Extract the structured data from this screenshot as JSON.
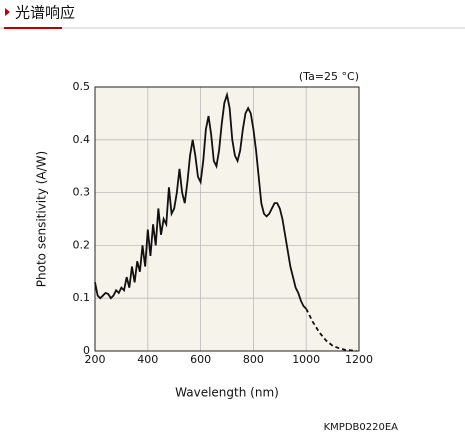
{
  "header": {
    "title": "光谱响应"
  },
  "chart_data": {
    "type": "line",
    "note": "(Ta=25 °C)",
    "xlabel": "Wavelength (nm)",
    "ylabel": "Photo sensitivity (A/W)",
    "footer": "KMPDB0220EA",
    "xlim": [
      200,
      1200
    ],
    "ylim": [
      0,
      0.5
    ],
    "xticks": [
      200,
      400,
      600,
      800,
      1000,
      1200
    ],
    "yticks": [
      0,
      0.1,
      0.2,
      0.3,
      0.4,
      0.5
    ],
    "grid": true,
    "series": [
      {
        "color": "#111111",
        "style": "solid",
        "x": [
          200,
          210,
          220,
          230,
          240,
          250,
          260,
          270,
          280,
          290,
          300,
          310,
          320,
          330,
          340,
          350,
          360,
          370,
          380,
          390,
          400,
          410,
          420,
          430,
          440,
          450,
          460,
          470,
          480,
          490,
          500,
          510,
          520,
          530,
          540,
          550,
          560,
          570,
          580,
          590,
          600,
          610,
          620,
          630,
          640,
          650,
          660,
          670,
          680,
          690,
          700,
          710,
          720,
          730,
          740,
          750,
          760,
          770,
          780,
          790,
          800,
          810,
          820,
          830,
          840,
          850,
          860,
          870,
          880,
          890,
          900,
          910,
          920,
          930,
          940,
          950,
          960,
          970,
          980,
          990,
          1000
        ],
        "values": [
          0.13,
          0.105,
          0.1,
          0.105,
          0.11,
          0.108,
          0.1,
          0.105,
          0.115,
          0.11,
          0.12,
          0.115,
          0.14,
          0.12,
          0.16,
          0.13,
          0.17,
          0.15,
          0.2,
          0.16,
          0.23,
          0.18,
          0.24,
          0.2,
          0.27,
          0.22,
          0.25,
          0.24,
          0.31,
          0.26,
          0.27,
          0.3,
          0.345,
          0.3,
          0.28,
          0.32,
          0.37,
          0.4,
          0.37,
          0.33,
          0.32,
          0.36,
          0.42,
          0.445,
          0.41,
          0.36,
          0.35,
          0.38,
          0.43,
          0.47,
          0.485,
          0.46,
          0.4,
          0.37,
          0.36,
          0.38,
          0.42,
          0.45,
          0.46,
          0.45,
          0.42,
          0.38,
          0.33,
          0.28,
          0.26,
          0.255,
          0.26,
          0.27,
          0.28,
          0.28,
          0.27,
          0.25,
          0.22,
          0.19,
          0.16,
          0.14,
          0.12,
          0.11,
          0.095,
          0.085,
          0.08
        ]
      },
      {
        "color": "#111111",
        "style": "dashed",
        "x": [
          1000,
          1025,
          1050,
          1075,
          1100,
          1125,
          1150,
          1175,
          1190
        ],
        "values": [
          0.08,
          0.055,
          0.035,
          0.02,
          0.01,
          0.005,
          0.002,
          0.001,
          0
        ]
      }
    ]
  }
}
